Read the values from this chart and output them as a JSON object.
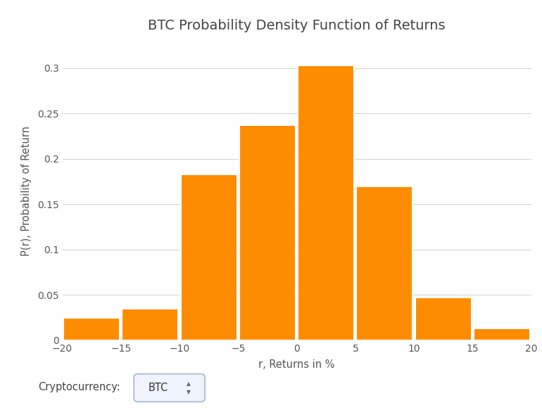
{
  "title": "BTC Probability Density Function of Returns",
  "xlabel": "r, Returns in %",
  "ylabel": "P(r), Probability of Return",
  "bar_centers": [
    -17.5,
    -12.5,
    -7.5,
    -2.5,
    2.5,
    7.5,
    12.5,
    17.5
  ],
  "bar_heights": [
    0.025,
    0.035,
    0.183,
    0.237,
    0.303,
    0.17,
    0.047,
    0.013
  ],
  "bar_width": 4.8,
  "bar_color": "#FF8C00",
  "bar_edge_color": "#FFFFFF",
  "bar_edge_width": 1.5,
  "xlim": [
    -20,
    20
  ],
  "ylim": [
    0,
    0.33
  ],
  "xticks": [
    -20,
    -15,
    -10,
    -5,
    0,
    5,
    10,
    15,
    20
  ],
  "yticks": [
    0,
    0.05,
    0.1,
    0.15,
    0.2,
    0.25,
    0.3
  ],
  "grid_color": "#CCCCCC",
  "grid_alpha": 0.9,
  "background_color": "#FFFFFF",
  "axes_background_color": "#FFFFFF",
  "title_fontsize": 14,
  "label_fontsize": 10.5,
  "tick_fontsize": 10,
  "title_color": "#444444",
  "label_color": "#555555",
  "tick_color": "#555555",
  "crypto_label": "Cryptocurrency:",
  "crypto_value": "BTC",
  "ytick_labels": [
    "0",
    "0.05",
    "0.1",
    "0.15",
    "0.2",
    "0.25",
    "0.3"
  ]
}
